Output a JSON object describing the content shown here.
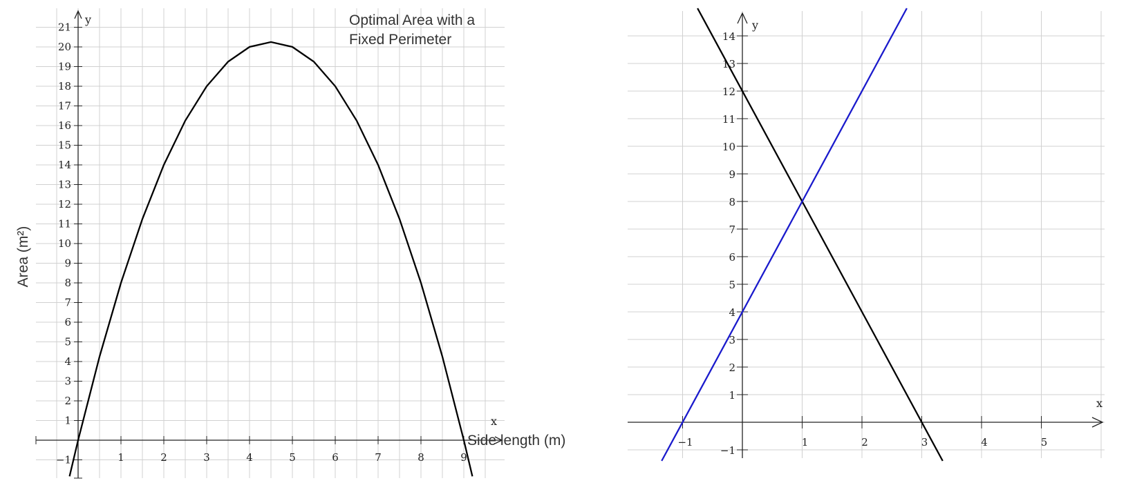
{
  "chart_data": [
    {
      "type": "line",
      "title": [
        "Optimal Area with a",
        "Fixed Perimeter"
      ],
      "xlabel": "Side length (m)",
      "ylabel": "Area (m²)",
      "x_axis_name": "x",
      "y_axis_name": "y",
      "xlim": [
        -1,
        10
      ],
      "ylim": [
        -2,
        22
      ],
      "grid": true,
      "x_ticks": [
        1,
        2,
        3,
        4,
        5,
        6,
        7,
        8,
        9
      ],
      "y_ticks": [
        -1,
        1,
        2,
        3,
        4,
        5,
        6,
        7,
        8,
        9,
        10,
        11,
        12,
        13,
        14,
        15,
        16,
        17,
        18,
        19,
        20,
        21
      ],
      "series": [
        {
          "color": "#000000",
          "formula": "y = x(9 - x)",
          "x": [
            -0.2,
            0,
            0.5,
            1,
            1.5,
            2,
            2.5,
            3,
            3.5,
            4,
            4.5,
            5,
            5.5,
            6,
            6.5,
            7,
            7.5,
            8,
            8.5,
            9,
            9.2
          ],
          "y": [
            -1.84,
            0,
            4.25,
            8,
            11.25,
            14,
            16.25,
            18,
            19.25,
            20,
            20.25,
            20,
            19.25,
            18,
            16.25,
            14,
            11.25,
            8,
            4.25,
            0,
            -1.84
          ]
        }
      ]
    },
    {
      "type": "line",
      "x_axis_name": "x",
      "y_axis_name": "y",
      "xlim": [
        -2,
        6
      ],
      "ylim": [
        -1.5,
        15
      ],
      "grid": true,
      "x_ticks": [
        -1,
        1,
        2,
        3,
        4,
        5
      ],
      "y_ticks": [
        -1,
        1,
        2,
        3,
        4,
        5,
        6,
        7,
        8,
        9,
        10,
        11,
        12,
        13,
        14
      ],
      "series": [
        {
          "color": "#000000",
          "formula": "y = -4x + 12",
          "x": [
            -0.75,
            3.35
          ],
          "y": [
            15,
            -1.4
          ]
        },
        {
          "color": "#1a1acc",
          "formula": "y = 4x + 4",
          "x": [
            -1.35,
            2.75
          ],
          "y": [
            -1.4,
            15
          ]
        }
      ]
    }
  ]
}
